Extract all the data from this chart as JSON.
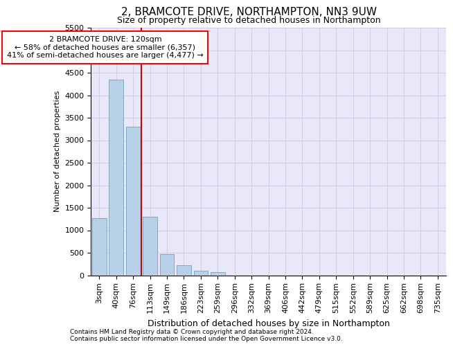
{
  "title1": "2, BRAMCOTE DRIVE, NORTHAMPTON, NN3 9UW",
  "title2": "Size of property relative to detached houses in Northampton",
  "xlabel": "Distribution of detached houses by size in Northampton",
  "ylabel": "Number of detached properties",
  "footnote1": "Contains HM Land Registry data © Crown copyright and database right 2024.",
  "footnote2": "Contains public sector information licensed under the Open Government Licence v3.0.",
  "annotation_line1": "2 BRAMCOTE DRIVE: 120sqm",
  "annotation_line2": "← 58% of detached houses are smaller (6,357)",
  "annotation_line3": "41% of semi-detached houses are larger (4,477) →",
  "bar_categories": [
    "3sqm",
    "40sqm",
    "76sqm",
    "113sqm",
    "149sqm",
    "186sqm",
    "223sqm",
    "259sqm",
    "296sqm",
    "332sqm",
    "369sqm",
    "406sqm",
    "442sqm",
    "479sqm",
    "515sqm",
    "552sqm",
    "589sqm",
    "625sqm",
    "662sqm",
    "698sqm",
    "735sqm"
  ],
  "bar_values": [
    1270,
    4340,
    3300,
    1300,
    475,
    230,
    100,
    75,
    0,
    0,
    0,
    0,
    0,
    0,
    0,
    0,
    0,
    0,
    0,
    0,
    0
  ],
  "bar_color": "#b8d0e8",
  "bar_edgecolor": "#7aaac8",
  "grid_color": "#d0d0e8",
  "bg_color": "#e8e8f8",
  "vline_color": "#cc0000",
  "vline_x": 2.5,
  "ylim_max": 5500,
  "yticks": [
    0,
    500,
    1000,
    1500,
    2000,
    2500,
    3000,
    3500,
    4000,
    4500,
    5000,
    5500
  ],
  "title1_fontsize": 11,
  "title2_fontsize": 9,
  "ylabel_fontsize": 8,
  "xlabel_fontsize": 9,
  "tick_fontsize": 8,
  "annot_fontsize": 8,
  "footnote_fontsize": 6.5
}
